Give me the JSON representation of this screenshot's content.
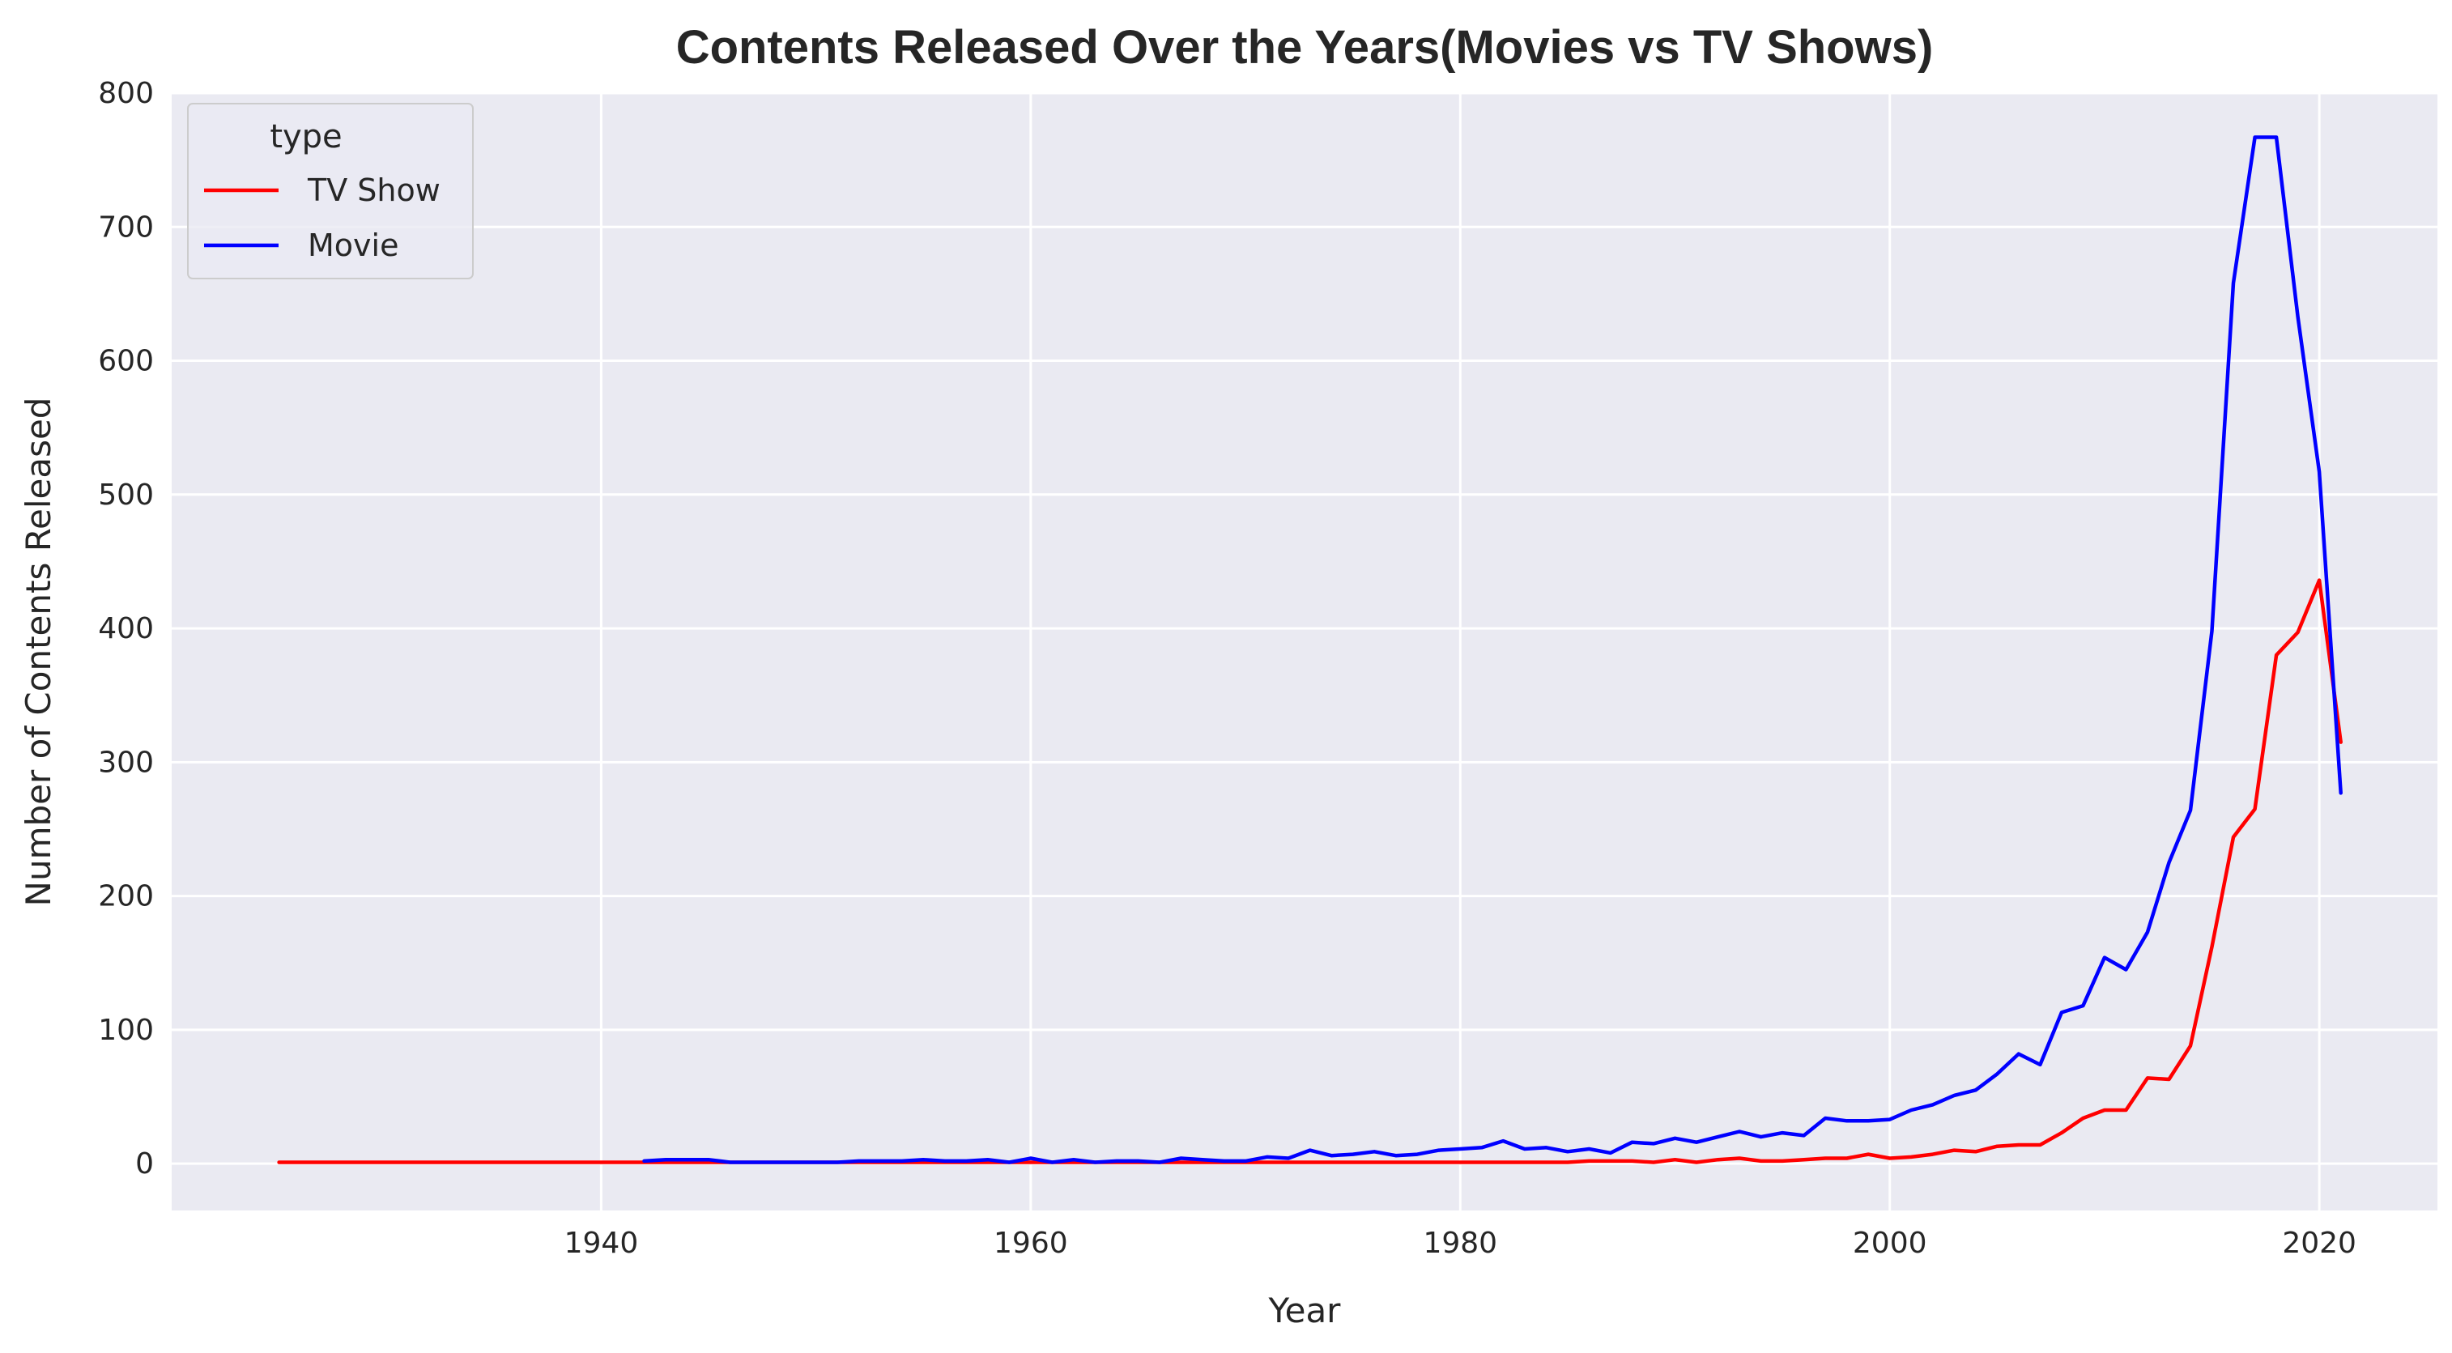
{
  "chart_data": {
    "type": "line",
    "title": "Contents Released Over the Years(Movies vs TV Shows)",
    "xlabel": "Year",
    "ylabel": "Number of Contents Released",
    "xlim": [
      1920,
      2025.5
    ],
    "ylim": [
      -35,
      800
    ],
    "xticks": [
      1940,
      1960,
      1980,
      2000,
      2020
    ],
    "yticks": [
      0,
      100,
      200,
      300,
      400,
      500,
      600,
      700,
      800
    ],
    "grid": true,
    "legend": {
      "title": "type",
      "position": "top-left"
    },
    "series": [
      {
        "name": "TV Show",
        "color": "#ff0000",
        "x": [
          1925,
          1930,
          1935,
          1940,
          1945,
          1950,
          1955,
          1960,
          1965,
          1970,
          1975,
          1980,
          1985,
          1986,
          1987,
          1988,
          1989,
          1990,
          1991,
          1992,
          1993,
          1994,
          1995,
          1996,
          1997,
          1998,
          1999,
          2000,
          2001,
          2002,
          2003,
          2004,
          2005,
          2006,
          2007,
          2008,
          2009,
          2010,
          2011,
          2012,
          2013,
          2014,
          2015,
          2016,
          2017,
          2018,
          2019,
          2020,
          2021
        ],
        "y": [
          1,
          1,
          1,
          1,
          1,
          1,
          1,
          1,
          1,
          1,
          1,
          1,
          1,
          2,
          2,
          2,
          1,
          3,
          1,
          3,
          4,
          2,
          2,
          3,
          4,
          4,
          7,
          4,
          5,
          7,
          10,
          9,
          13,
          14,
          14,
          23,
          34,
          40,
          40,
          64,
          63,
          88,
          162,
          244,
          265,
          380,
          397,
          436,
          315
        ]
      },
      {
        "name": "Movie",
        "color": "#0000ff",
        "x": [
          1942,
          1943,
          1944,
          1945,
          1946,
          1947,
          1948,
          1949,
          1950,
          1951,
          1952,
          1953,
          1954,
          1955,
          1956,
          1957,
          1958,
          1959,
          1960,
          1961,
          1962,
          1963,
          1964,
          1965,
          1966,
          1967,
          1968,
          1969,
          1970,
          1971,
          1972,
          1973,
          1974,
          1975,
          1976,
          1977,
          1978,
          1979,
          1980,
          1981,
          1982,
          1983,
          1984,
          1985,
          1986,
          1987,
          1988,
          1989,
          1990,
          1991,
          1992,
          1993,
          1994,
          1995,
          1996,
          1997,
          1998,
          1999,
          2000,
          2001,
          2002,
          2003,
          2004,
          2005,
          2006,
          2007,
          2008,
          2009,
          2010,
          2011,
          2012,
          2013,
          2014,
          2015,
          2016,
          2017,
          2018,
          2019,
          2020,
          2021
        ],
        "y": [
          2,
          3,
          3,
          3,
          1,
          1,
          1,
          1,
          1,
          1,
          2,
          2,
          2,
          3,
          2,
          2,
          3,
          1,
          4,
          1,
          3,
          1,
          2,
          2,
          1,
          4,
          3,
          2,
          2,
          5,
          4,
          10,
          6,
          7,
          9,
          6,
          7,
          10,
          11,
          12,
          17,
          11,
          12,
          9,
          11,
          8,
          16,
          15,
          19,
          16,
          20,
          24,
          20,
          23,
          21,
          34,
          32,
          32,
          33,
          40,
          44,
          51,
          55,
          67,
          82,
          74,
          113,
          118,
          154,
          145,
          173,
          225,
          264,
          398,
          658,
          767,
          767,
          633,
          517,
          277
        ]
      }
    ]
  }
}
